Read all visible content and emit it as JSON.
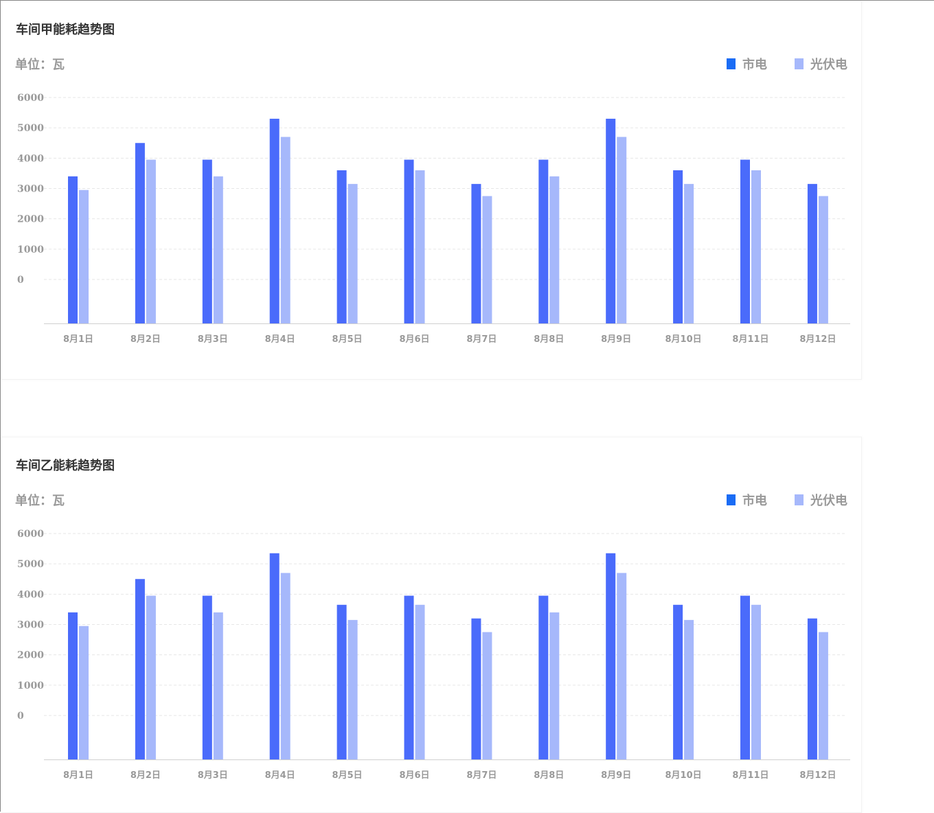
{
  "charts": [
    {
      "title": "车间甲能耗趋势图",
      "unit_label": "单位：瓦",
      "legend": [
        {
          "label": "市电",
          "color": "#1a6cf5"
        },
        {
          "label": "光伏电",
          "color": "#a6b8fb"
        }
      ]
    },
    {
      "title": "车间乙能耗趋势图",
      "unit_label": "单位：瓦",
      "legend": [
        {
          "label": "市电",
          "color": "#1a6cf5"
        },
        {
          "label": "光伏电",
          "color": "#a6b8fb"
        }
      ]
    }
  ],
  "chart_data": [
    {
      "type": "bar",
      "title": "车间甲能耗趋势图",
      "ylabel": "单位：瓦",
      "ylim": [
        0,
        6000
      ],
      "yticks": [
        "6000",
        "5000",
        "4000",
        "3000",
        "2000",
        "1000",
        "0"
      ],
      "categories": [
        "8月1日",
        "8月2日",
        "8月3日",
        "8月4日",
        "8月5日",
        "8月6日",
        "8月7日",
        "8月8日",
        "8月9日",
        "8月10日",
        "8月11日",
        "8月12日"
      ],
      "series": [
        {
          "name": "市电",
          "color": "#4a6bfb",
          "values": [
            3400,
            4500,
            3950,
            5300,
            3600,
            3950,
            3150,
            3950,
            5300,
            3600,
            3950,
            3150
          ]
        },
        {
          "name": "光伏电",
          "color": "#a6b8fb",
          "values": [
            2950,
            3950,
            3400,
            4700,
            3150,
            3600,
            2750,
            3400,
            4700,
            3150,
            3600,
            2750
          ]
        }
      ],
      "legend_position": "top-right",
      "grid": true
    },
    {
      "type": "bar",
      "title": "车间乙能耗趋势图",
      "ylabel": "单位：瓦",
      "ylim": [
        0,
        6000
      ],
      "yticks": [
        "6000",
        "5000",
        "4000",
        "3000",
        "2000",
        "1000",
        "0"
      ],
      "categories": [
        "8月1日",
        "8月2日",
        "8月3日",
        "8月4日",
        "8月5日",
        "8月6日",
        "8月7日",
        "8月8日",
        "8月9日",
        "8月10日",
        "8月11日",
        "8月12日"
      ],
      "series": [
        {
          "name": "市电",
          "color": "#4a6bfb",
          "values": [
            3400,
            4500,
            3950,
            5350,
            3650,
            3950,
            3200,
            3950,
            5350,
            3650,
            3950,
            3200
          ]
        },
        {
          "name": "光伏电",
          "color": "#a6b8fb",
          "values": [
            2950,
            3950,
            3400,
            4700,
            3150,
            3650,
            2750,
            3400,
            4700,
            3150,
            3650,
            2750
          ]
        }
      ],
      "legend_position": "top-right",
      "grid": true
    }
  ]
}
